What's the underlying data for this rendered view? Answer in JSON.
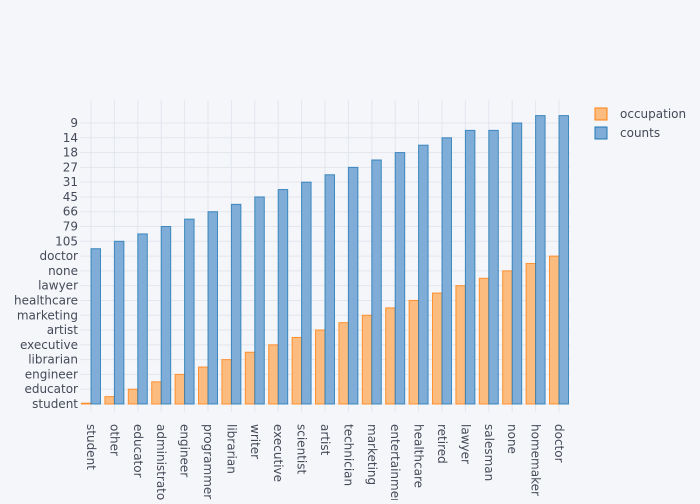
{
  "chart_data": {
    "type": "bar",
    "title": "",
    "xlabel": "",
    "ylabel": "",
    "grid": true,
    "legend_placement": "top-right",
    "categories": [
      "student",
      "other",
      "educator",
      "administrator",
      "engineer",
      "programmer",
      "librarian",
      "writer",
      "executive",
      "scientist",
      "artist",
      "technician",
      "marketing",
      "entertainment",
      "healthcare",
      "retired",
      "lawyer",
      "salesman",
      "none",
      "homemaker",
      "doctor"
    ],
    "y_tick_labels": [
      "student",
      "educator",
      "engineer",
      "librarian",
      "executive",
      "artist",
      "marketing",
      "healthcare",
      "lawyer",
      "none",
      "doctor",
      "105",
      "79",
      "66",
      "45",
      "31",
      "27",
      "18",
      "14",
      "9"
    ],
    "series": [
      {
        "name": "occupation",
        "color": "#ff7f0e",
        "values": [
          0,
          0.5,
          1,
          1.5,
          2,
          2.5,
          3,
          3.5,
          4,
          4.5,
          5,
          5.5,
          6,
          6.5,
          7,
          7.5,
          8,
          8.5,
          9,
          9.5,
          10
        ]
      },
      {
        "name": "counts",
        "color": "#1f77b4",
        "values": [
          10.5,
          11,
          11.5,
          12,
          12.5,
          13,
          13.5,
          14,
          14.5,
          15,
          15.5,
          16,
          16.5,
          17,
          17.5,
          18,
          18.5,
          18.5,
          19,
          19.5,
          19.5
        ]
      }
    ],
    "value_units": "y-category index (categorical axis)"
  }
}
